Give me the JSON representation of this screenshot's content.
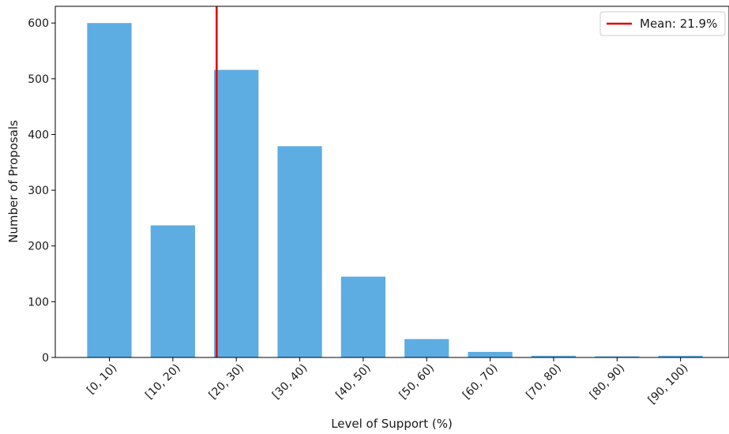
{
  "chart_data": {
    "type": "bar",
    "categories": [
      "[0, 10)",
      "[10, 20)",
      "[20, 30)",
      "[30, 40)",
      "[40, 50)",
      "[50, 60)",
      "[60, 70)",
      "[70, 80)",
      "[80, 90)",
      "[90, 100)"
    ],
    "values": [
      600,
      237,
      516,
      379,
      145,
      33,
      10,
      3,
      2,
      3
    ],
    "xlabel": "Level of Support (%)",
    "ylabel": "Number of Proposals",
    "ylim": [
      0,
      630
    ],
    "yticks": [
      0,
      100,
      200,
      300,
      400,
      500,
      600
    ],
    "mean_value": 21.9,
    "mean_label": "Mean: 21.9%",
    "bar_color": "#5dade2",
    "mean_line_color": "#e00000",
    "legend_position": "top-right",
    "grid": false
  }
}
